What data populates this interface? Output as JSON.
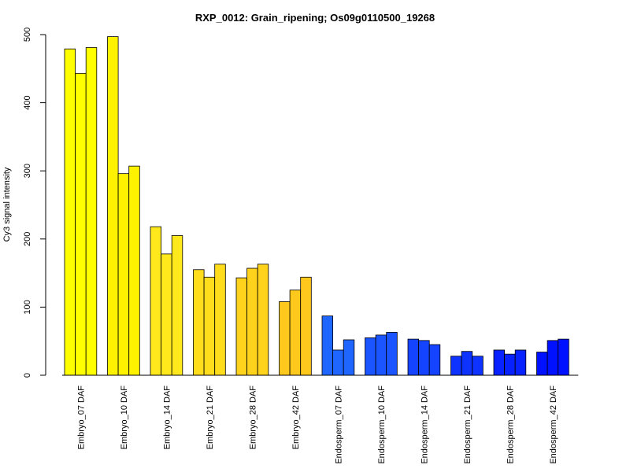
{
  "chart_data": {
    "type": "bar",
    "title": "RXP_0012: Grain_ripening; Os09g0110500_19268",
    "xlabel": "",
    "ylabel": "Cy3 signal intensity",
    "ylim": [
      0,
      500
    ],
    "yticks": [
      0,
      100,
      200,
      300,
      400,
      500
    ],
    "grid": false,
    "categories": [
      "Embryo_07 DAF",
      "Embryo_10 DAF",
      "Embryo_14 DAF",
      "Embryo_21 DAF",
      "Embryo_28 DAF",
      "Embryo_42 DAF",
      "Endosperm_07 DAF",
      "Endosperm_10 DAF",
      "Endosperm_14 DAF",
      "Endosperm_21 DAF",
      "Endosperm_28 DAF",
      "Endosperm_42 DAF"
    ],
    "colors": [
      "#ffff00",
      "#fff200",
      "#ffe81c",
      "#ffdc1c",
      "#ffd21c",
      "#ffc81c",
      "#1f66ff",
      "#1b55ff",
      "#1444ff",
      "#0e33ff",
      "#0822ff",
      "#0011ff"
    ],
    "replicates": [
      [
        479,
        443,
        481
      ],
      [
        497,
        296,
        307
      ],
      [
        218,
        178,
        205
      ],
      [
        155,
        144,
        163
      ],
      [
        143,
        157,
        163
      ],
      [
        108,
        125,
        144
      ],
      [
        87,
        37,
        52
      ],
      [
        55,
        59,
        63
      ],
      [
        53,
        51,
        45
      ],
      [
        28,
        35,
        28
      ],
      [
        37,
        31,
        37
      ],
      [
        34,
        51,
        53
      ]
    ]
  }
}
